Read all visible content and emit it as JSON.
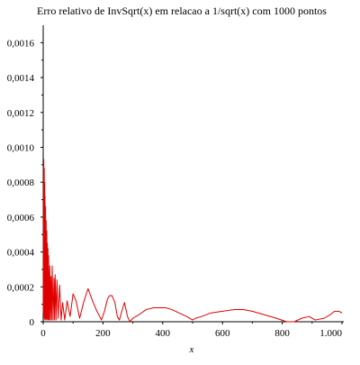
{
  "chart_data": {
    "type": "line",
    "title": "Erro relativo de InvSqrt(x) em relacao a 1/sqrt(x) com 1000 pontos",
    "xlabel": "x",
    "ylabel": "",
    "xlim": [
      0,
      1000
    ],
    "ylim": [
      0,
      0.0017
    ],
    "xticks": [
      {
        "value": 0,
        "label": "0"
      },
      {
        "value": 200,
        "label": "200"
      },
      {
        "value": 400,
        "label": "400"
      },
      {
        "value": 600,
        "label": "600"
      },
      {
        "value": 800,
        "label": "800"
      },
      {
        "value": 1000,
        "label": "1.000"
      }
    ],
    "yticks": [
      {
        "value": 0,
        "label": "0"
      },
      {
        "value": 0.0002,
        "label": "0,0002"
      },
      {
        "value": 0.0004,
        "label": "0,0004"
      },
      {
        "value": 0.0006,
        "label": "0,0006"
      },
      {
        "value": 0.0008,
        "label": "0,0008"
      },
      {
        "value": 0.001,
        "label": "0,0010"
      },
      {
        "value": 0.0012,
        "label": "0,0012"
      },
      {
        "value": 0.0014,
        "label": "0,0014"
      },
      {
        "value": 0.0016,
        "label": "0,0016"
      }
    ],
    "grid": false,
    "series": [
      {
        "color": "#e00000",
        "x": [
          0,
          1,
          1.5,
          2,
          3,
          3.5,
          4,
          5,
          5.5,
          6,
          7,
          8,
          9,
          10,
          11,
          12,
          13,
          14,
          15,
          16,
          17,
          18,
          20,
          22,
          24,
          26,
          28,
          30,
          33,
          36,
          38,
          40,
          43,
          46,
          50,
          55,
          60,
          65,
          72,
          80,
          90,
          100,
          110,
          122,
          135,
          150,
          165,
          180,
          195,
          205,
          215,
          222,
          230,
          240,
          248,
          255,
          263,
          272,
          282,
          290,
          300,
          320,
          345,
          370,
          395,
          410,
          430,
          455,
          480,
          500,
          510,
          530,
          560,
          600,
          640,
          670,
          700,
          740,
          780,
          815,
          840,
          865,
          890,
          910,
          940,
          960,
          975,
          990,
          1000
        ],
        "y": [
          5e-05,
          0.0009,
          2e-05,
          0.00093,
          3e-05,
          0.00088,
          2e-05,
          0.0008,
          1e-05,
          0.00072,
          2e-05,
          0.00066,
          1e-05,
          0.00058,
          2e-05,
          0.00052,
          1e-05,
          0.00045,
          2e-05,
          0.00042,
          1e-05,
          0.00038,
          1e-05,
          0.00032,
          1e-05,
          0.00026,
          1e-05,
          0.00032,
          1e-05,
          0.00025,
          1e-05,
          0.00027,
          1e-05,
          0.00024,
          2e-05,
          0.00021,
          1e-05,
          0.00011,
          1e-05,
          0.00012,
          3e-05,
          0.00016,
          0.00012,
          2e-05,
          0.00011,
          0.00019,
          0.00012,
          6e-05,
          1e-05,
          6e-05,
          0.00013,
          0.00015,
          0.00015,
          0.00011,
          3e-05,
          1e-05,
          6e-05,
          0.00011,
          3e-05,
          0.0,
          2e-05,
          4e-05,
          7e-05,
          8e-05,
          8e-05,
          8e-05,
          7e-05,
          5e-05,
          3e-05,
          1e-05,
          2e-05,
          3e-05,
          5e-05,
          6e-05,
          7e-05,
          7e-05,
          6e-05,
          4e-05,
          2e-05,
          0.0,
          0.0,
          2e-05,
          3e-05,
          1e-05,
          2e-05,
          4e-05,
          6e-05,
          6e-05,
          5e-05
        ]
      }
    ]
  }
}
